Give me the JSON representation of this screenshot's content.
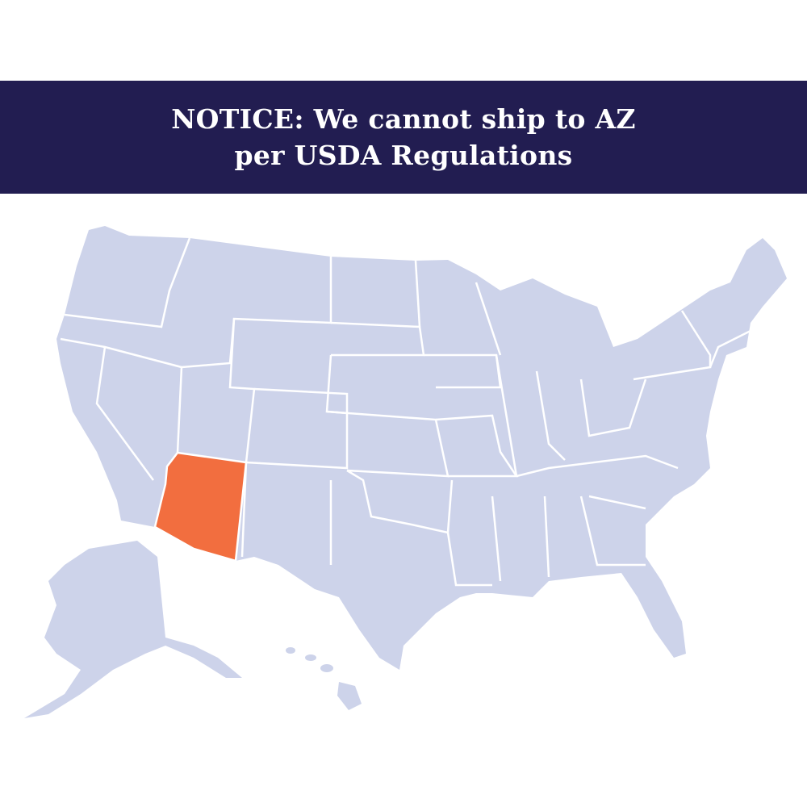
{
  "banner": {
    "line1": "NOTICE: We cannot ship to AZ",
    "line2": "per USDA Regulations",
    "background": "#221d51"
  },
  "map": {
    "state_fill": "#cdd3ea",
    "highlight_fill": "#f26e3f",
    "border_color": "#ffffff",
    "highlighted_state": "AZ"
  }
}
